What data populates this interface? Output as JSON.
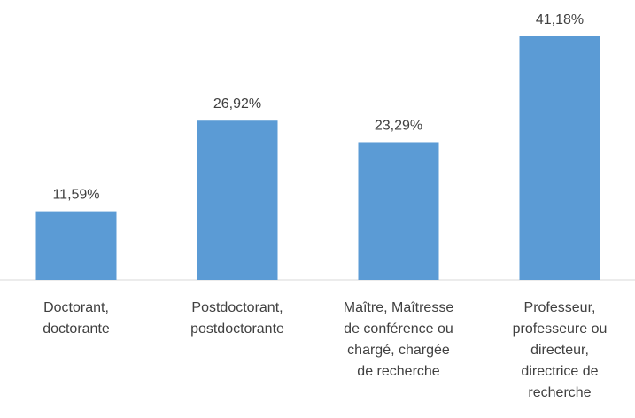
{
  "chart_data": {
    "type": "bar",
    "categories": [
      "Doctorant,\ndoctorante",
      "Postdoctorant,\npostdoctorante",
      "Maître, Maîtresse\nde conférence ou\nchargé, chargée\nde recherche",
      "Professeur,\nprofesseure ou\ndirecteur,\ndirectrice de\nrecherche"
    ],
    "values": [
      11.59,
      26.92,
      23.29,
      41.18
    ],
    "value_labels": [
      "11,59%",
      "26,92%",
      "23,29%",
      "41,18%"
    ],
    "color": "#5b9bd5"
  }
}
